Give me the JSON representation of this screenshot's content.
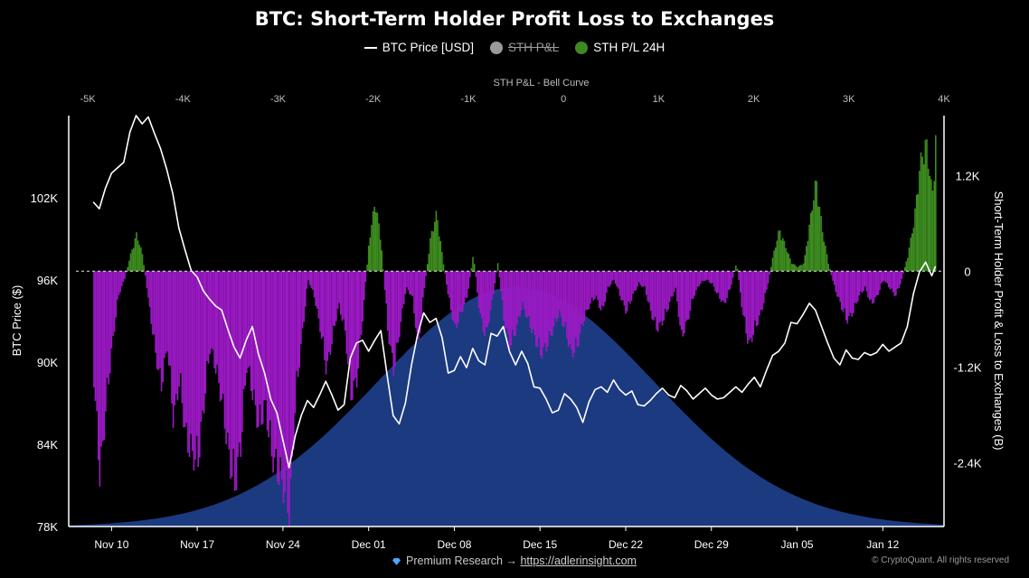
{
  "header": {
    "title": "BTC: Short-Term Holder Profit Loss to Exchanges"
  },
  "legend": [
    {
      "label": "BTC Price [USD]",
      "kind": "line",
      "color": "#ffffff",
      "active": true
    },
    {
      "label": "STH P&L",
      "kind": "dot",
      "color": "#9a9a9a",
      "active": false
    },
    {
      "label": "STH P/L 24H",
      "kind": "dot",
      "color": "#3d8b1f",
      "active": true
    }
  ],
  "footer": {
    "premium_text": "Premium Research →",
    "link": "https://adlerinsight.com",
    "copyright": "© CryptoQuant. All rights reserved"
  },
  "colors": {
    "background": "#000000",
    "profit": "#3d8b1f",
    "loss": "#9b19c4",
    "bell": "#1c3a80",
    "price": "#ffffff"
  },
  "chart_data": {
    "type": "line",
    "top_axis": {
      "label": "STH P&L - Bell Curve",
      "ticks": [
        "-5K",
        "-4K",
        "-3K",
        "-2K",
        "-1K",
        "0",
        "1K",
        "2K",
        "3K",
        "4K"
      ],
      "tick_values": [
        -5000,
        -4000,
        -3000,
        -2000,
        -1000,
        0,
        1000,
        2000,
        3000,
        4000
      ],
      "range": [
        -5200,
        4000
      ]
    },
    "left_axis": {
      "label": "BTC Price ($)",
      "ticks": [
        "102K",
        "96K",
        "90K",
        "84K",
        "78K"
      ],
      "tick_values": [
        102000,
        96000,
        90000,
        84000,
        78000
      ],
      "range": [
        78000,
        108000
      ]
    },
    "right_axis": {
      "label": "Short-Term Holder Profit & Loss to Exchanges (B)",
      "ticks": [
        "1.2K",
        "0",
        "-1.2K",
        "-2.4K"
      ],
      "tick_values": [
        1200,
        0,
        -1200,
        -2400
      ],
      "range": [
        -3200,
        1950
      ]
    },
    "x_axis": {
      "ticks": [
        "Nov 10",
        "Nov 17",
        "Nov 24",
        "Dec 01",
        "Dec 08",
        "Dec 15",
        "Dec 22",
        "Dec 29",
        "Jan 05",
        "Jan 12"
      ],
      "tick_days": [
        0,
        7,
        14,
        21,
        28,
        35,
        42,
        49,
        56,
        63
      ],
      "range": [
        -3.5,
        68
      ]
    },
    "bell_curve": {
      "center": -500,
      "sigma": 1450,
      "peak_value": 3000
    },
    "series": [
      {
        "name": "BTC Price [USD]",
        "color": "#ffffff",
        "points": [
          [
            -1.5,
            101700
          ],
          [
            -1.0,
            101200
          ],
          [
            -0.5,
            102700
          ],
          [
            0.0,
            103800
          ],
          [
            0.5,
            104200
          ],
          [
            1.0,
            104600
          ],
          [
            1.5,
            106800
          ],
          [
            2.0,
            108000
          ],
          [
            2.5,
            107400
          ],
          [
            3.0,
            107900
          ],
          [
            3.5,
            106700
          ],
          [
            4.0,
            105600
          ],
          [
            4.5,
            104100
          ],
          [
            5.0,
            102300
          ],
          [
            5.5,
            99800
          ],
          [
            6.0,
            98200
          ],
          [
            6.5,
            96700
          ],
          [
            7.0,
            96200
          ],
          [
            7.5,
            95200
          ],
          [
            8.0,
            94600
          ],
          [
            8.5,
            94100
          ],
          [
            9.0,
            93800
          ],
          [
            9.5,
            92400
          ],
          [
            10.0,
            91100
          ],
          [
            10.5,
            90300
          ],
          [
            11.0,
            91600
          ],
          [
            11.5,
            92600
          ],
          [
            12.0,
            90600
          ],
          [
            12.5,
            89200
          ],
          [
            13.0,
            87300
          ],
          [
            13.5,
            86300
          ],
          [
            14.0,
            84300
          ],
          [
            14.5,
            82300
          ],
          [
            15.0,
            84600
          ],
          [
            15.5,
            86100
          ],
          [
            16.0,
            87200
          ],
          [
            16.5,
            86700
          ],
          [
            17.0,
            87600
          ],
          [
            17.5,
            88600
          ],
          [
            18.0,
            87600
          ],
          [
            18.5,
            86500
          ],
          [
            19.0,
            86900
          ],
          [
            19.5,
            90300
          ],
          [
            20.0,
            91400
          ],
          [
            20.5,
            91600
          ],
          [
            21.0,
            90800
          ],
          [
            21.5,
            91600
          ],
          [
            22.0,
            92300
          ],
          [
            22.5,
            89100
          ],
          [
            23.0,
            86100
          ],
          [
            23.5,
            85500
          ],
          [
            24.0,
            87000
          ],
          [
            24.5,
            89800
          ],
          [
            25.0,
            92000
          ],
          [
            25.5,
            93600
          ],
          [
            26.0,
            92900
          ],
          [
            26.5,
            93200
          ],
          [
            27.0,
            91800
          ],
          [
            27.5,
            89200
          ],
          [
            28.0,
            89400
          ],
          [
            28.5,
            90400
          ],
          [
            29.0,
            89600
          ],
          [
            29.5,
            91000
          ],
          [
            30.0,
            90100
          ],
          [
            30.5,
            89800
          ],
          [
            31.0,
            92100
          ],
          [
            31.5,
            91900
          ],
          [
            32.0,
            92600
          ],
          [
            32.5,
            90800
          ],
          [
            33.0,
            89800
          ],
          [
            33.5,
            90800
          ],
          [
            34.0,
            89900
          ],
          [
            34.5,
            88200
          ],
          [
            35.0,
            88100
          ],
          [
            35.5,
            87300
          ],
          [
            36.0,
            86300
          ],
          [
            36.5,
            86500
          ],
          [
            37.0,
            87700
          ],
          [
            37.5,
            87300
          ],
          [
            38.0,
            86700
          ],
          [
            38.5,
            85600
          ],
          [
            39.0,
            87100
          ],
          [
            39.5,
            88000
          ],
          [
            40.0,
            88200
          ],
          [
            40.5,
            87800
          ],
          [
            41.0,
            88700
          ],
          [
            41.5,
            88000
          ],
          [
            42.0,
            87600
          ],
          [
            42.5,
            87900
          ],
          [
            43.0,
            86900
          ],
          [
            43.5,
            86800
          ],
          [
            44.0,
            87200
          ],
          [
            44.5,
            87700
          ],
          [
            45.0,
            88100
          ],
          [
            45.5,
            87600
          ],
          [
            46.0,
            87400
          ],
          [
            46.5,
            88300
          ],
          [
            47.0,
            87900
          ],
          [
            47.5,
            87300
          ],
          [
            48.0,
            87700
          ],
          [
            48.5,
            88100
          ],
          [
            49.0,
            87600
          ],
          [
            49.5,
            87300
          ],
          [
            50.0,
            87400
          ],
          [
            50.5,
            87800
          ],
          [
            51.0,
            88200
          ],
          [
            51.5,
            87800
          ],
          [
            52.0,
            88400
          ],
          [
            52.5,
            88900
          ],
          [
            53.0,
            88200
          ],
          [
            53.5,
            89400
          ],
          [
            54.0,
            90500
          ],
          [
            54.5,
            90800
          ],
          [
            55.0,
            91400
          ],
          [
            55.5,
            92900
          ],
          [
            56.0,
            92800
          ],
          [
            56.5,
            93500
          ],
          [
            57.0,
            94300
          ],
          [
            57.5,
            93800
          ],
          [
            58.0,
            92600
          ],
          [
            58.5,
            91400
          ],
          [
            59.0,
            90300
          ],
          [
            59.5,
            89800
          ],
          [
            60.0,
            90900
          ],
          [
            60.5,
            90300
          ],
          [
            61.0,
            90200
          ],
          [
            61.5,
            90700
          ],
          [
            62.0,
            90500
          ],
          [
            62.5,
            90700
          ],
          [
            63.0,
            91300
          ],
          [
            63.5,
            90800
          ],
          [
            64.0,
            91100
          ],
          [
            64.5,
            91400
          ],
          [
            65.0,
            92600
          ],
          [
            65.5,
            95000
          ],
          [
            66.0,
            96600
          ],
          [
            66.5,
            97300
          ],
          [
            67.0,
            96300
          ],
          [
            67.3,
            97000
          ]
        ]
      },
      {
        "name": "STH P/L 24H",
        "colors": {
          "positive": "#3d8b1f",
          "negative": "#9b19c4"
        },
        "points": [
          [
            -1.5,
            -1300
          ],
          [
            -1.0,
            -2500
          ],
          [
            -0.5,
            -1600
          ],
          [
            0.0,
            -900
          ],
          [
            0.5,
            -300
          ],
          [
            1.0,
            -100
          ],
          [
            1.5,
            200
          ],
          [
            2.0,
            450
          ],
          [
            2.5,
            180
          ],
          [
            3.0,
            -400
          ],
          [
            3.5,
            -950
          ],
          [
            4.0,
            -1400
          ],
          [
            4.5,
            -900
          ],
          [
            5.0,
            -1800
          ],
          [
            5.5,
            -1300
          ],
          [
            6.0,
            -2000
          ],
          [
            6.5,
            -2200
          ],
          [
            7.0,
            -2300
          ],
          [
            7.5,
            -1600
          ],
          [
            8.0,
            -900
          ],
          [
            8.5,
            -1200
          ],
          [
            9.0,
            -1600
          ],
          [
            9.5,
            -2200
          ],
          [
            10.0,
            -2600
          ],
          [
            10.5,
            -2100
          ],
          [
            11.0,
            -1100
          ],
          [
            11.5,
            -1500
          ],
          [
            12.0,
            -1900
          ],
          [
            12.5,
            -1600
          ],
          [
            13.0,
            -2200
          ],
          [
            13.5,
            -2400
          ],
          [
            14.0,
            -2600
          ],
          [
            14.5,
            -2900
          ],
          [
            15.0,
            -1500
          ],
          [
            15.5,
            -800
          ],
          [
            16.0,
            -100
          ],
          [
            16.5,
            -300
          ],
          [
            17.0,
            -700
          ],
          [
            17.5,
            -1200
          ],
          [
            18.0,
            -800
          ],
          [
            18.5,
            -400
          ],
          [
            19.0,
            -700
          ],
          [
            19.5,
            -1500
          ],
          [
            20.0,
            -1300
          ],
          [
            20.5,
            -500
          ],
          [
            21.0,
            400
          ],
          [
            21.5,
            850
          ],
          [
            22.0,
            300
          ],
          [
            22.5,
            -700
          ],
          [
            23.0,
            -1200
          ],
          [
            23.5,
            -700
          ],
          [
            24.0,
            -200
          ],
          [
            24.5,
            -300
          ],
          [
            25.0,
            -900
          ],
          [
            25.5,
            -200
          ],
          [
            26.0,
            400
          ],
          [
            26.5,
            700
          ],
          [
            27.0,
            150
          ],
          [
            27.5,
            -350
          ],
          [
            28.0,
            -700
          ],
          [
            28.5,
            -500
          ],
          [
            29.0,
            -300
          ],
          [
            29.5,
            200
          ],
          [
            30.0,
            -500
          ],
          [
            30.5,
            -800
          ],
          [
            31.0,
            -400
          ],
          [
            31.5,
            100
          ],
          [
            32.0,
            -600
          ],
          [
            32.5,
            -900
          ],
          [
            33.0,
            -700
          ],
          [
            33.5,
            -400
          ],
          [
            34.0,
            -600
          ],
          [
            34.5,
            -800
          ],
          [
            35.0,
            -1000
          ],
          [
            35.5,
            -900
          ],
          [
            36.0,
            -700
          ],
          [
            36.5,
            -500
          ],
          [
            37.0,
            -700
          ],
          [
            37.5,
            -1000
          ],
          [
            38.0,
            -900
          ],
          [
            38.5,
            -600
          ],
          [
            39.0,
            -400
          ],
          [
            39.5,
            -300
          ],
          [
            40.0,
            -500
          ],
          [
            40.5,
            -200
          ],
          [
            41.0,
            -100
          ],
          [
            41.5,
            -300
          ],
          [
            42.0,
            -500
          ],
          [
            42.5,
            -300
          ],
          [
            43.0,
            -150
          ],
          [
            43.5,
            -200
          ],
          [
            44.0,
            -500
          ],
          [
            44.5,
            -700
          ],
          [
            45.0,
            -600
          ],
          [
            45.5,
            -400
          ],
          [
            46.0,
            -200
          ],
          [
            46.5,
            -800
          ],
          [
            47.0,
            -600
          ],
          [
            47.5,
            -300
          ],
          [
            48.0,
            -150
          ],
          [
            48.5,
            -100
          ],
          [
            49.0,
            -150
          ],
          [
            49.5,
            -300
          ],
          [
            50.0,
            -400
          ],
          [
            50.5,
            -200
          ],
          [
            51.0,
            100
          ],
          [
            51.5,
            -500
          ],
          [
            52.0,
            -900
          ],
          [
            52.5,
            -700
          ],
          [
            53.0,
            -500
          ],
          [
            53.5,
            -200
          ],
          [
            54.0,
            200
          ],
          [
            54.5,
            500
          ],
          [
            55.0,
            300
          ],
          [
            55.5,
            100
          ],
          [
            56.0,
            50
          ],
          [
            56.5,
            100
          ],
          [
            57.0,
            600
          ],
          [
            57.5,
            1100
          ],
          [
            58.0,
            500
          ],
          [
            58.5,
            100
          ],
          [
            59.0,
            -200
          ],
          [
            59.5,
            -400
          ],
          [
            60.0,
            -600
          ],
          [
            60.5,
            -500
          ],
          [
            61.0,
            -300
          ],
          [
            61.5,
            -200
          ],
          [
            62.0,
            -400
          ],
          [
            62.5,
            -300
          ],
          [
            63.0,
            -100
          ],
          [
            63.5,
            -200
          ],
          [
            64.0,
            -300
          ],
          [
            64.5,
            -100
          ],
          [
            65.0,
            200
          ],
          [
            65.5,
            600
          ],
          [
            66.0,
            1300
          ],
          [
            66.5,
            1550
          ],
          [
            67.0,
            900
          ],
          [
            67.3,
            1700
          ]
        ]
      }
    ]
  }
}
